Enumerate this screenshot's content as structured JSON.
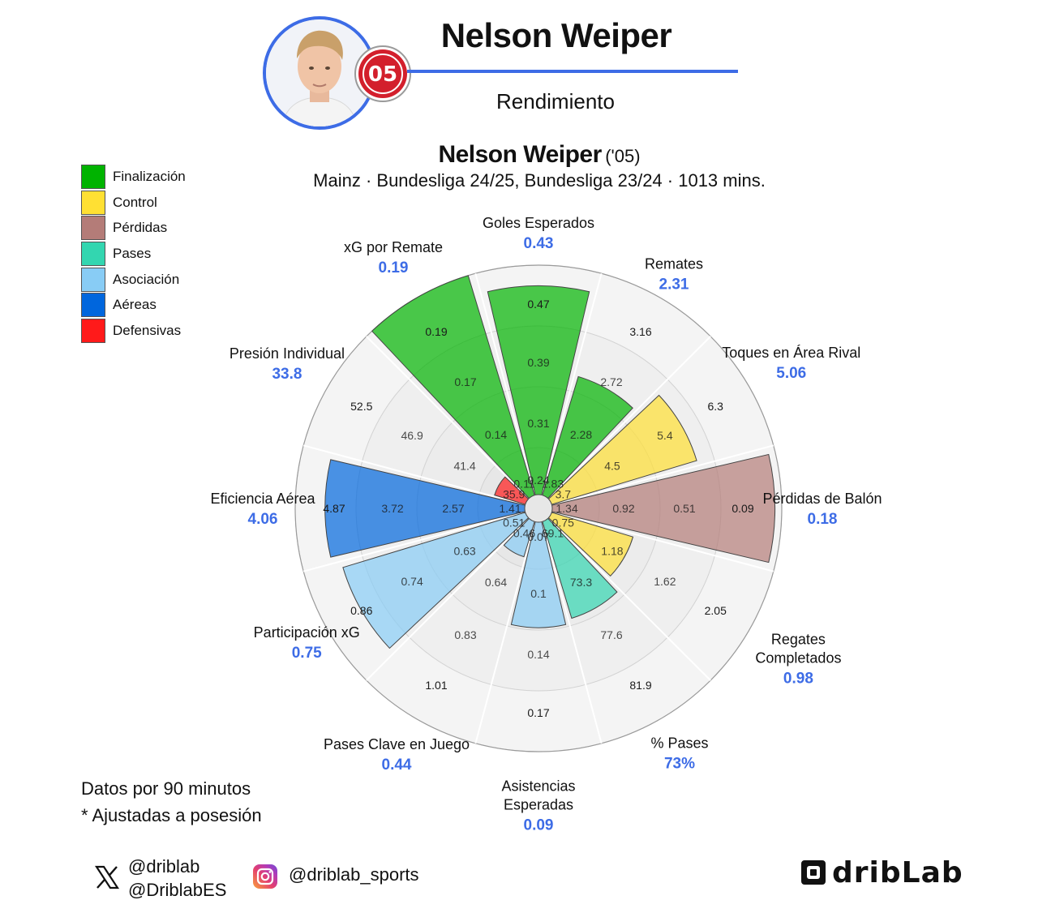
{
  "header": {
    "player_name": "Nelson Weiper",
    "subtitle": "Rendimiento"
  },
  "chart_header": {
    "name": "Nelson Weiper",
    "year": "('05)",
    "info": "Mainz · Bundesliga 24/25, Bundesliga 23/24 · 1013 mins."
  },
  "legend": [
    {
      "label": "Finalización",
      "color": "#00b300"
    },
    {
      "label": "Control",
      "color": "#ffe033"
    },
    {
      "label": "Pérdidas",
      "color": "#b47c78"
    },
    {
      "label": "Pases",
      "color": "#33d6b0"
    },
    {
      "label": "Asociación",
      "color": "#88ccf5"
    },
    {
      "label": "Aéreas",
      "color": "#0066dd"
    },
    {
      "label": "Defensivas",
      "color": "#ff1a1a"
    }
  ],
  "notes": {
    "line1": "Datos por 90 minutos",
    "line2": "* Ajustadas a posesión"
  },
  "social": {
    "x_handle_1": "@driblab",
    "x_handle_2": "@DriblabES",
    "instagram": "@driblab_sports",
    "brand": "dribLab"
  },
  "chart_data": {
    "type": "polar-bar",
    "categories": [
      {
        "label": "Goles Esperados",
        "value_text": "0.43",
        "value": 0.43,
        "group": "Finalización",
        "fill": 0.91,
        "ticks": [
          "0.24",
          "0.31",
          "0.39",
          "0.47"
        ]
      },
      {
        "label": "Remates",
        "value_text": "2.31",
        "value": 2.31,
        "group": "Finalización",
        "fill": 0.54,
        "ticks": [
          "1.83",
          "2.28",
          "2.72",
          "3.16"
        ]
      },
      {
        "label": "Toques en Área Rival",
        "value_text": "5.06",
        "value": 5.06,
        "group": "Control",
        "fill": 0.66,
        "ticks": [
          "3.7",
          "4.5",
          "5.4",
          "6.3"
        ]
      },
      {
        "label": "Pérdidas de Balón",
        "value_text": "0.18",
        "value": 0.18,
        "group": "Pérdidas",
        "fill": 0.97,
        "ticks": [
          "1.34",
          "0.92",
          "0.51",
          "0.09"
        ]
      },
      {
        "label": "Regates Completados",
        "value_text": "0.98",
        "value": 0.98,
        "group": "Control",
        "fill": 0.37,
        "ticks": [
          "0.75",
          "1.18",
          "1.62",
          "2.05"
        ]
      },
      {
        "label": "% Pases",
        "value_text": "73%",
        "value": 73,
        "group": "Pases",
        "fill": 0.44,
        "ticks": [
          "69.1",
          "73.3",
          "77.6",
          "81.9"
        ]
      },
      {
        "label": "Asistencias Esperadas",
        "value_text": "0.09",
        "value": 0.09,
        "group": "Asociación",
        "fill": 0.46,
        "ticks": [
          "0.07",
          "0.1",
          "0.14",
          "0.17"
        ]
      },
      {
        "label": "Pases Clave en Juego",
        "value_text": "0.44",
        "value": 0.44,
        "group": "Asociación",
        "fill": 0.16,
        "ticks": [
          "0.46",
          "0.64",
          "0.83",
          "1.01"
        ]
      },
      {
        "label": "Participación xG",
        "value_text": "0.75",
        "value": 0.75,
        "group": "Asociación",
        "fill": 0.83,
        "ticks": [
          "0.51",
          "0.63",
          "0.74",
          "0.86"
        ]
      },
      {
        "label": "Eficiencia Aérea",
        "value_text": "4.06",
        "value": 4.06,
        "group": "Aéreas",
        "fill": 0.87,
        "ticks": [
          "1.41",
          "2.57",
          "3.72",
          "4.87"
        ]
      },
      {
        "label": "Presión Individual",
        "value_text": "33.8",
        "value": 33.8,
        "group": "Defensivas",
        "fill": 0.14,
        "ticks": [
          "35.9",
          "41.4",
          "46.9",
          "52.5"
        ]
      },
      {
        "label": "xG por Remate",
        "value_text": "0.19",
        "value": 0.19,
        "group": "Finalización",
        "fill": 1.0,
        "ticks": [
          "0.11",
          "0.14",
          "0.17",
          "0.19"
        ]
      }
    ]
  }
}
